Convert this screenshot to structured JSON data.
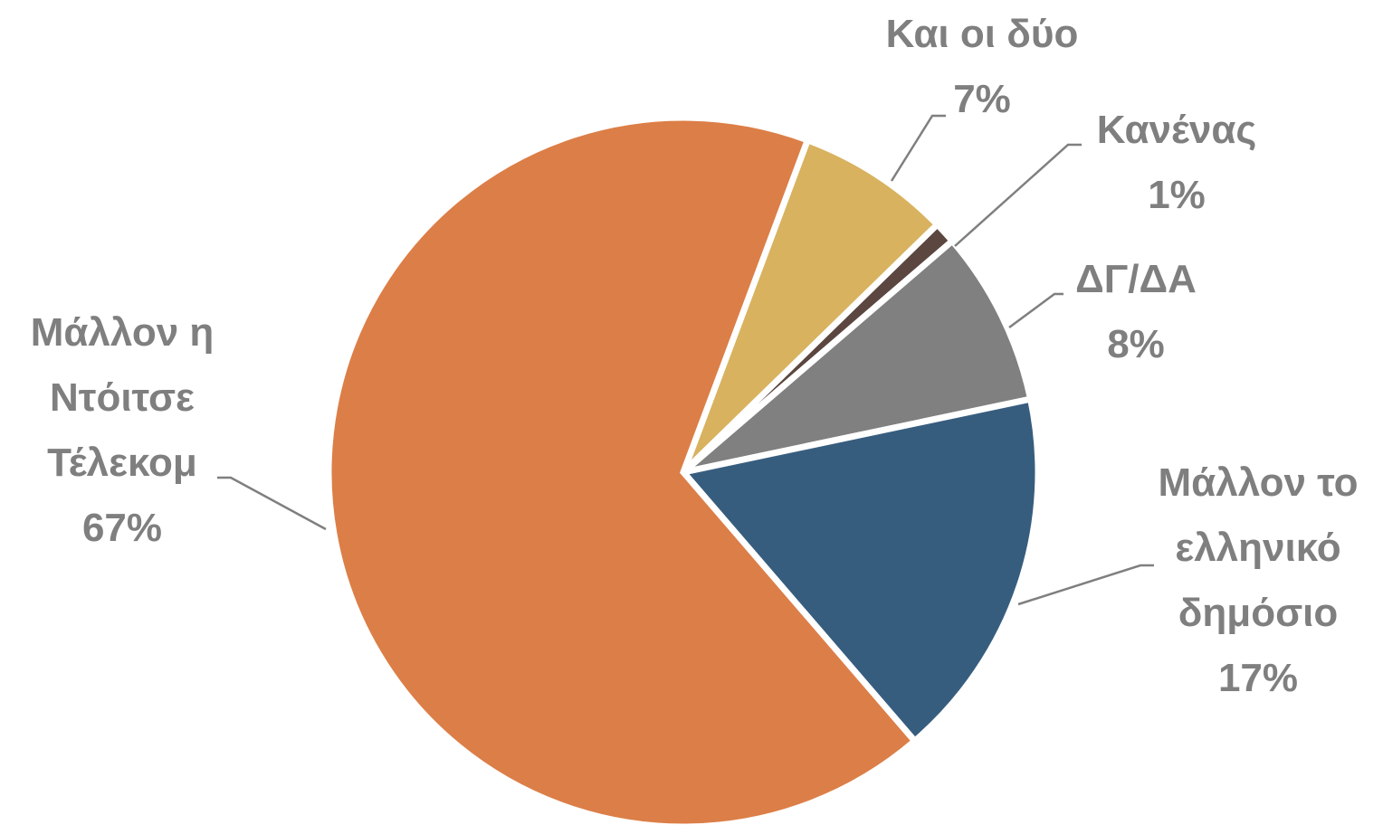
{
  "chart_data": {
    "type": "pie",
    "categories": [
      "Και οι δύο",
      "Κανένας",
      "ΔΓ/ΔΑ",
      "Μάλλον το ελληνικό δημόσιο",
      "Μάλλον η Ντόιτσε Τέλεκομ"
    ],
    "values": [
      7,
      1,
      8,
      17,
      67
    ],
    "value_labels": [
      "7%",
      "1%",
      "8%",
      "17%",
      "67%"
    ],
    "colors": [
      "#d8b25f",
      "#5b4640",
      "#808080",
      "#375d7e",
      "#dc7e47"
    ]
  }
}
